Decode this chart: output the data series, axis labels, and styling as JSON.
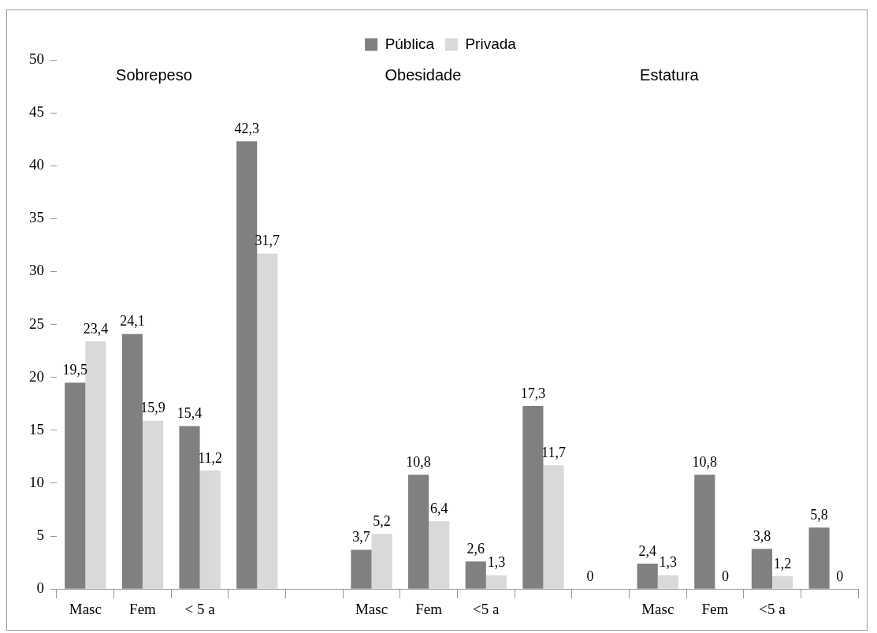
{
  "chart_data": {
    "type": "bar",
    "categories": [
      "Masc",
      "Fem",
      "< 5 a",
      null,
      null,
      "Masc",
      "Fem",
      "<5 a",
      null,
      null,
      "Masc",
      "Fem",
      "<5 a",
      null
    ],
    "series": [
      {
        "name": "Pública",
        "color": "#808080",
        "values": [
          19.5,
          24.1,
          15.4,
          42.3,
          null,
          3.7,
          10.8,
          2.6,
          17.3,
          0,
          2.4,
          10.8,
          3.8,
          5.8
        ],
        "value_labels": [
          "19,5",
          "24,1",
          "15,4",
          "42,3",
          null,
          "3,7",
          "10,8",
          "2,6",
          "17,3",
          "0",
          "2,4",
          "10,8",
          "3,8",
          "5,8"
        ]
      },
      {
        "name": "Privada",
        "color": "#d9d9d9",
        "values": [
          23.4,
          15.9,
          11.2,
          31.7,
          null,
          5.2,
          6.4,
          1.3,
          11.7,
          null,
          1.3,
          0,
          1.2,
          0
        ],
        "value_labels": [
          "23,4",
          "15,9",
          "11,2",
          "31,7",
          null,
          "5,2",
          "6,4",
          "1,3",
          "11,7",
          null,
          "1,3",
          "0",
          "1,2",
          "0"
        ]
      }
    ],
    "annotations": [
      "Sobrepeso",
      "Obesidade",
      "Estatura"
    ],
    "ylim": [
      0,
      50
    ],
    "yticks": [
      0,
      5,
      10,
      15,
      20,
      25,
      30,
      35,
      40,
      45,
      50
    ],
    "grid": false,
    "legend": "top"
  }
}
